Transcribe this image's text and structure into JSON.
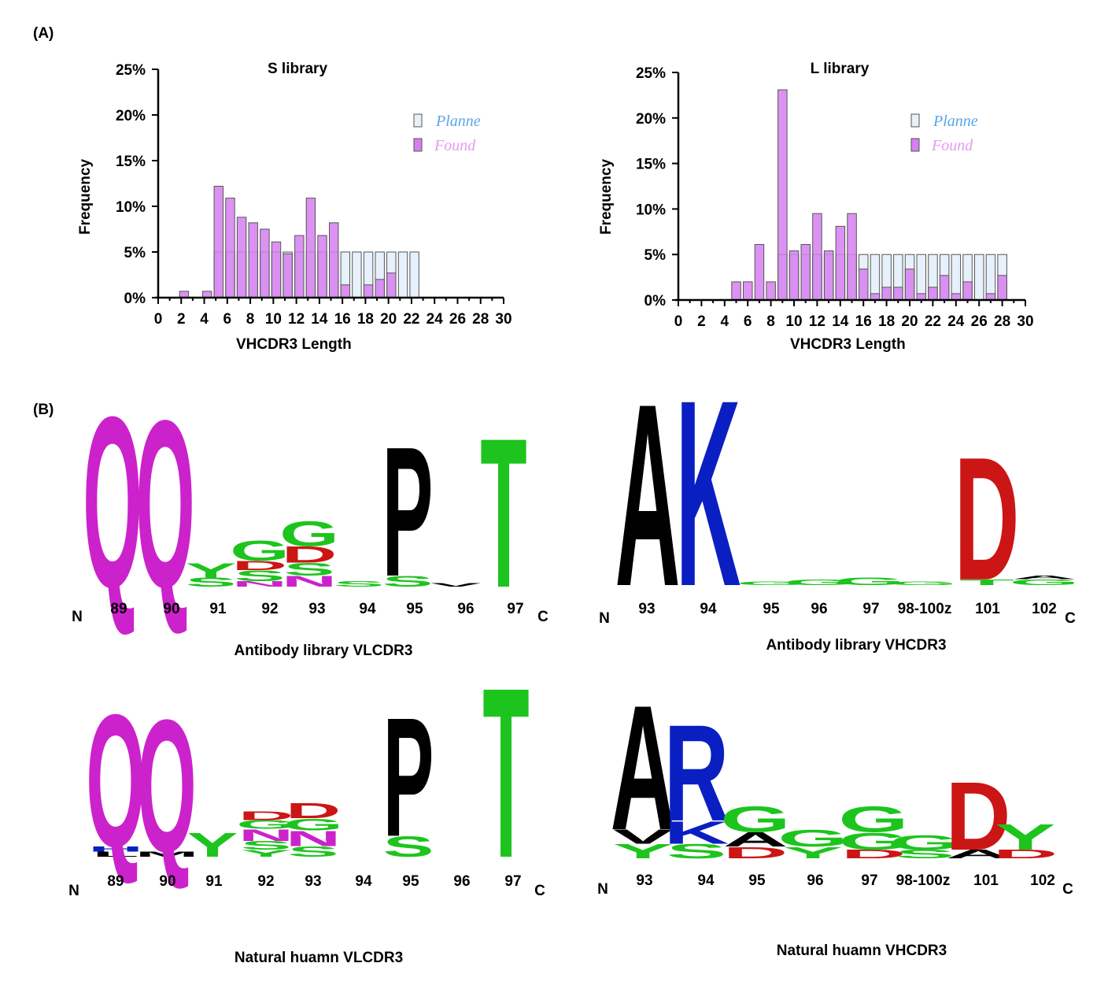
{
  "panels": {
    "a_label": "(A)",
    "b_label": "(B)"
  },
  "colors": {
    "planned_fill": "#e6f1fc",
    "planned_text": "#5aa6e8",
    "found_fill": "#d67ff0",
    "found_text": "#e49af0",
    "bar_stroke": "#555555",
    "logo_magenta": "#cc22cc",
    "logo_green": "#1dc41d",
    "logo_red": "#cc1515",
    "logo_blue": "#0a1fc2",
    "logo_black": "#000000"
  },
  "chart_data": [
    {
      "type": "bar",
      "title": "S library",
      "xlabel": "VHCDR3 Length",
      "ylabel": "Frequency",
      "xlim": [
        0,
        30
      ],
      "ylim": [
        0,
        25
      ],
      "yticks": [
        "0%",
        "5%",
        "10%",
        "15%",
        "20%",
        "25%"
      ],
      "xticks": [
        "0",
        "2",
        "4",
        "6",
        "8",
        "10",
        "12",
        "14",
        "16",
        "18",
        "20",
        "22",
        "24",
        "26",
        "28",
        "30"
      ],
      "legend": [
        "Planne",
        "Found"
      ],
      "legend_position": "top-right",
      "series": [
        {
          "name": "Planne",
          "x": [
            5,
            6,
            7,
            8,
            9,
            10,
            11,
            12,
            13,
            14,
            15,
            16,
            17,
            18,
            19,
            20,
            21,
            22
          ],
          "values": [
            5,
            5,
            5,
            5,
            5,
            5,
            5,
            5,
            5,
            5,
            5,
            5,
            5,
            5,
            5,
            5,
            5,
            5
          ]
        },
        {
          "name": "Found",
          "x": [
            2,
            4,
            5,
            6,
            7,
            8,
            9,
            10,
            11,
            12,
            13,
            14,
            15,
            16,
            17,
            18,
            19,
            20
          ],
          "values": [
            0.7,
            0.7,
            12.2,
            10.9,
            8.8,
            8.2,
            7.5,
            6.1,
            4.8,
            6.8,
            10.9,
            6.8,
            8.2,
            1.4,
            0,
            1.4,
            2.0,
            2.7
          ]
        }
      ]
    },
    {
      "type": "bar",
      "title": "L library",
      "xlabel": "VHCDR3 Length",
      "ylabel": "Frequency",
      "xlim": [
        0,
        30
      ],
      "ylim": [
        0,
        25
      ],
      "yticks": [
        "0%",
        "5%",
        "10%",
        "15%",
        "20%",
        "25%"
      ],
      "xticks": [
        "0",
        "2",
        "4",
        "6",
        "8",
        "10",
        "12",
        "14",
        "16",
        "18",
        "20",
        "22",
        "24",
        "26",
        "28",
        "30"
      ],
      "legend": [
        "Planne",
        "Found"
      ],
      "legend_position": "top-right",
      "series": [
        {
          "name": "Planne",
          "x": [
            9,
            10,
            11,
            12,
            13,
            14,
            15,
            16,
            17,
            18,
            19,
            20,
            21,
            22,
            23,
            24,
            25,
            26,
            27,
            28
          ],
          "values": [
            5,
            5,
            5,
            5,
            5,
            5,
            5,
            5,
            5,
            5,
            5,
            5,
            5,
            5,
            5,
            5,
            5,
            5,
            5,
            5
          ]
        },
        {
          "name": "Found",
          "x": [
            5,
            6,
            7,
            8,
            9,
            10,
            11,
            12,
            13,
            14,
            15,
            16,
            17,
            18,
            19,
            20,
            21,
            22,
            23,
            24,
            25,
            26,
            27,
            28
          ],
          "values": [
            2.0,
            2.0,
            6.1,
            2.0,
            23.1,
            5.4,
            6.1,
            9.5,
            5.4,
            8.1,
            9.5,
            3.4,
            0.7,
            1.4,
            1.4,
            3.4,
            0.7,
            1.4,
            2.7,
            0.7,
            2.0,
            0,
            0.7,
            2.7
          ]
        }
      ]
    }
  ],
  "logos": [
    {
      "title": "Antibody library VLCDR3",
      "n_label": "N",
      "c_label": "C",
      "positions": [
        "89",
        "90",
        "91",
        "92",
        "93",
        "94",
        "95",
        "96",
        "97"
      ],
      "columns": [
        [
          {
            "l": "Q",
            "c": "m",
            "h": 0.95
          }
        ],
        [
          {
            "l": "Q",
            "c": "m",
            "h": 0.93
          }
        ],
        [
          {
            "l": "S",
            "c": "g",
            "h": 0.05
          },
          {
            "l": "Y",
            "c": "g",
            "h": 0.08
          }
        ],
        [
          {
            "l": "N",
            "c": "m",
            "h": 0.03
          },
          {
            "l": "S",
            "c": "g",
            "h": 0.06
          },
          {
            "l": "D",
            "c": "r",
            "h": 0.05
          },
          {
            "l": "G",
            "c": "g",
            "h": 0.11
          }
        ],
        [
          {
            "l": "N",
            "c": "m",
            "h": 0.06
          },
          {
            "l": "S",
            "c": "g",
            "h": 0.07
          },
          {
            "l": "D",
            "c": "r",
            "h": 0.09
          },
          {
            "l": "G",
            "c": "g",
            "h": 0.14
          }
        ],
        [
          {
            "l": "S",
            "c": "g",
            "h": 0.03
          }
        ],
        [
          {
            "l": "S",
            "c": "g",
            "h": 0.06
          },
          {
            "l": "P",
            "c": "k",
            "h": 0.72
          }
        ],
        [
          {
            "l": "V",
            "c": "k",
            "h": 0.02
          }
        ],
        [
          {
            "l": "T",
            "c": "g",
            "h": 0.83
          }
        ]
      ]
    },
    {
      "title": "Antibody library VHCDR3",
      "n_label": "N",
      "c_label": "C",
      "positions": [
        "93",
        "94",
        "95",
        "96",
        "97",
        "98-100z",
        "101",
        "102"
      ],
      "columns": [
        [
          {
            "l": "A",
            "c": "k",
            "h": 0.98
          }
        ],
        [
          {
            "l": "K",
            "c": "b",
            "h": 1.0
          }
        ],
        [
          {
            "l": "G",
            "c": "g",
            "h": 0.02
          }
        ],
        [
          {
            "l": "G",
            "c": "g",
            "h": 0.03
          }
        ],
        [
          {
            "l": "G",
            "c": "g",
            "h": 0.04
          }
        ],
        [
          {
            "l": "G",
            "c": "g",
            "h": 0.02
          }
        ],
        [
          {
            "l": "T",
            "c": "g",
            "h": 0.03
          },
          {
            "l": "D",
            "c": "r",
            "h": 0.66
          }
        ],
        [
          {
            "l": "G",
            "c": "g",
            "h": 0.03
          },
          {
            "l": "A",
            "c": "k",
            "h": 0.02
          }
        ]
      ]
    },
    {
      "title": "Natural huamn VLCDR3",
      "n_label": "N",
      "c_label": "C",
      "positions": [
        "89",
        "90",
        "91",
        "92",
        "93",
        "94",
        "95",
        "96",
        "97"
      ],
      "columns": [
        [
          {
            "l": "L",
            "c": "k",
            "h": 0.03
          },
          {
            "l": "H",
            "c": "b",
            "h": 0.03
          },
          {
            "l": "Q",
            "c": "m",
            "h": 0.78
          }
        ],
        [
          {
            "l": "M",
            "c": "k",
            "h": 0.03
          },
          {
            "l": "Q",
            "c": "m",
            "h": 0.78
          }
        ],
        [
          {
            "l": "Y",
            "c": "g",
            "h": 0.14
          }
        ],
        [
          {
            "l": "Y",
            "c": "g",
            "h": 0.04
          },
          {
            "l": "S",
            "c": "g",
            "h": 0.05
          },
          {
            "l": "N",
            "c": "m",
            "h": 0.07
          },
          {
            "l": "G",
            "c": "g",
            "h": 0.05
          },
          {
            "l": "D",
            "c": "r",
            "h": 0.05
          }
        ],
        [
          {
            "l": "S",
            "c": "g",
            "h": 0.06
          },
          {
            "l": "N",
            "c": "m",
            "h": 0.09
          },
          {
            "l": "G",
            "c": "g",
            "h": 0.07
          },
          {
            "l": "D",
            "c": "r",
            "h": 0.09
          }
        ],
        [],
        [
          {
            "l": "S",
            "c": "g",
            "h": 0.12
          },
          {
            "l": "P",
            "c": "k",
            "h": 0.7
          }
        ],
        [],
        [
          {
            "l": "T",
            "c": "g",
            "h": 1.0
          }
        ]
      ]
    },
    {
      "title": "Natural huamn VHCDR3",
      "n_label": "N",
      "c_label": "C",
      "positions": [
        "93",
        "94",
        "95",
        "96",
        "97",
        "98-100z",
        "101",
        "102"
      ],
      "columns": [
        [
          {
            "l": "Y",
            "c": "g",
            "h": 0.05
          },
          {
            "l": "V",
            "c": "k",
            "h": 0.05
          },
          {
            "l": "A",
            "c": "k",
            "h": 0.44
          }
        ],
        [
          {
            "l": "S",
            "c": "g",
            "h": 0.05
          },
          {
            "l": "K",
            "c": "b",
            "h": 0.08
          },
          {
            "l": "R",
            "c": "b",
            "h": 0.34
          }
        ],
        [
          {
            "l": "D",
            "c": "r",
            "h": 0.04
          },
          {
            "l": "A",
            "c": "k",
            "h": 0.05
          },
          {
            "l": "G",
            "c": "g",
            "h": 0.09
          }
        ],
        [
          {
            "l": "Y",
            "c": "g",
            "h": 0.04
          },
          {
            "l": "G",
            "c": "g",
            "h": 0.06
          }
        ],
        [
          {
            "l": "D",
            "c": "r",
            "h": 0.03
          },
          {
            "l": "G",
            "c": "g",
            "h": 0.06
          },
          {
            "l": "G",
            "c": "g",
            "h": 0.09
          }
        ],
        [
          {
            "l": "S",
            "c": "g",
            "h": 0.03
          },
          {
            "l": "G",
            "c": "g",
            "h": 0.05
          }
        ],
        [
          {
            "l": "A",
            "c": "k",
            "h": 0.03
          },
          {
            "l": "D",
            "c": "r",
            "h": 0.24
          }
        ],
        [
          {
            "l": "D",
            "c": "r",
            "h": 0.03
          },
          {
            "l": "Y",
            "c": "g",
            "h": 0.09
          }
        ]
      ]
    }
  ]
}
